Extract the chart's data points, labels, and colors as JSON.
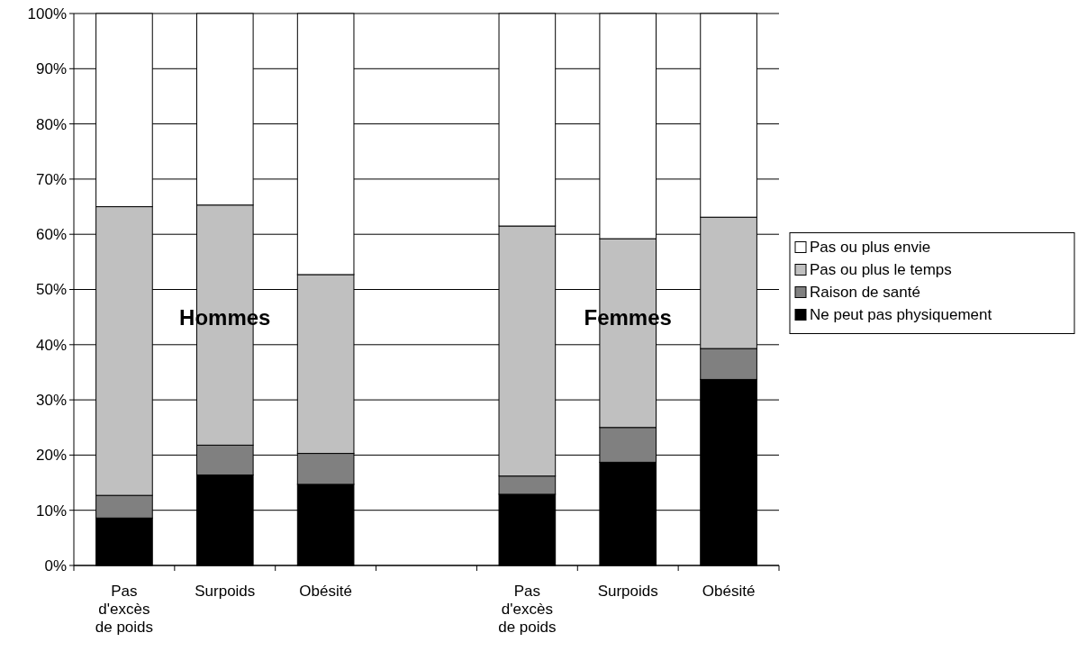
{
  "chart_data": {
    "type": "bar",
    "stacked": true,
    "categories": [
      "Pas d'excès de poids",
      "Surpoids",
      "Obésité",
      null,
      "Pas d'excès de poids",
      "Surpoids",
      "Obésité"
    ],
    "series": [
      {
        "name": "Ne peut pas physiquement",
        "color": "#000000",
        "values": [
          8.6,
          16.4,
          14.7,
          null,
          12.9,
          18.7,
          33.7
        ]
      },
      {
        "name": "Raison de santé",
        "color": "#808080",
        "values": [
          4.1,
          5.4,
          5.6,
          null,
          3.3,
          6.3,
          5.6
        ]
      },
      {
        "name": "Pas ou plus le temps",
        "color": "#c0c0c0",
        "values": [
          52.3,
          43.5,
          32.4,
          null,
          45.3,
          34.2,
          23.8
        ]
      },
      {
        "name": "Pas ou plus envie",
        "color": "#ffffff",
        "values": [
          35,
          34.7,
          47.3,
          null,
          38.5,
          40.8,
          36.9
        ]
      }
    ],
    "annotations": [
      "Hommes",
      "Femmes"
    ],
    "ylim": [
      0,
      100
    ],
    "yticks": [
      {
        "value": 0,
        "label": "0%"
      },
      {
        "value": 10,
        "label": "10%"
      },
      {
        "value": 20,
        "label": "20%"
      },
      {
        "value": 30,
        "label": "30%"
      },
      {
        "value": 40,
        "label": "40%"
      },
      {
        "value": 50,
        "label": "50%"
      },
      {
        "value": 60,
        "label": "60%"
      },
      {
        "value": 70,
        "label": "70%"
      },
      {
        "value": 80,
        "label": "80%"
      },
      {
        "value": 90,
        "label": "90%"
      },
      {
        "value": 100,
        "label": "100%"
      }
    ],
    "grid": "y",
    "legend": "right"
  }
}
